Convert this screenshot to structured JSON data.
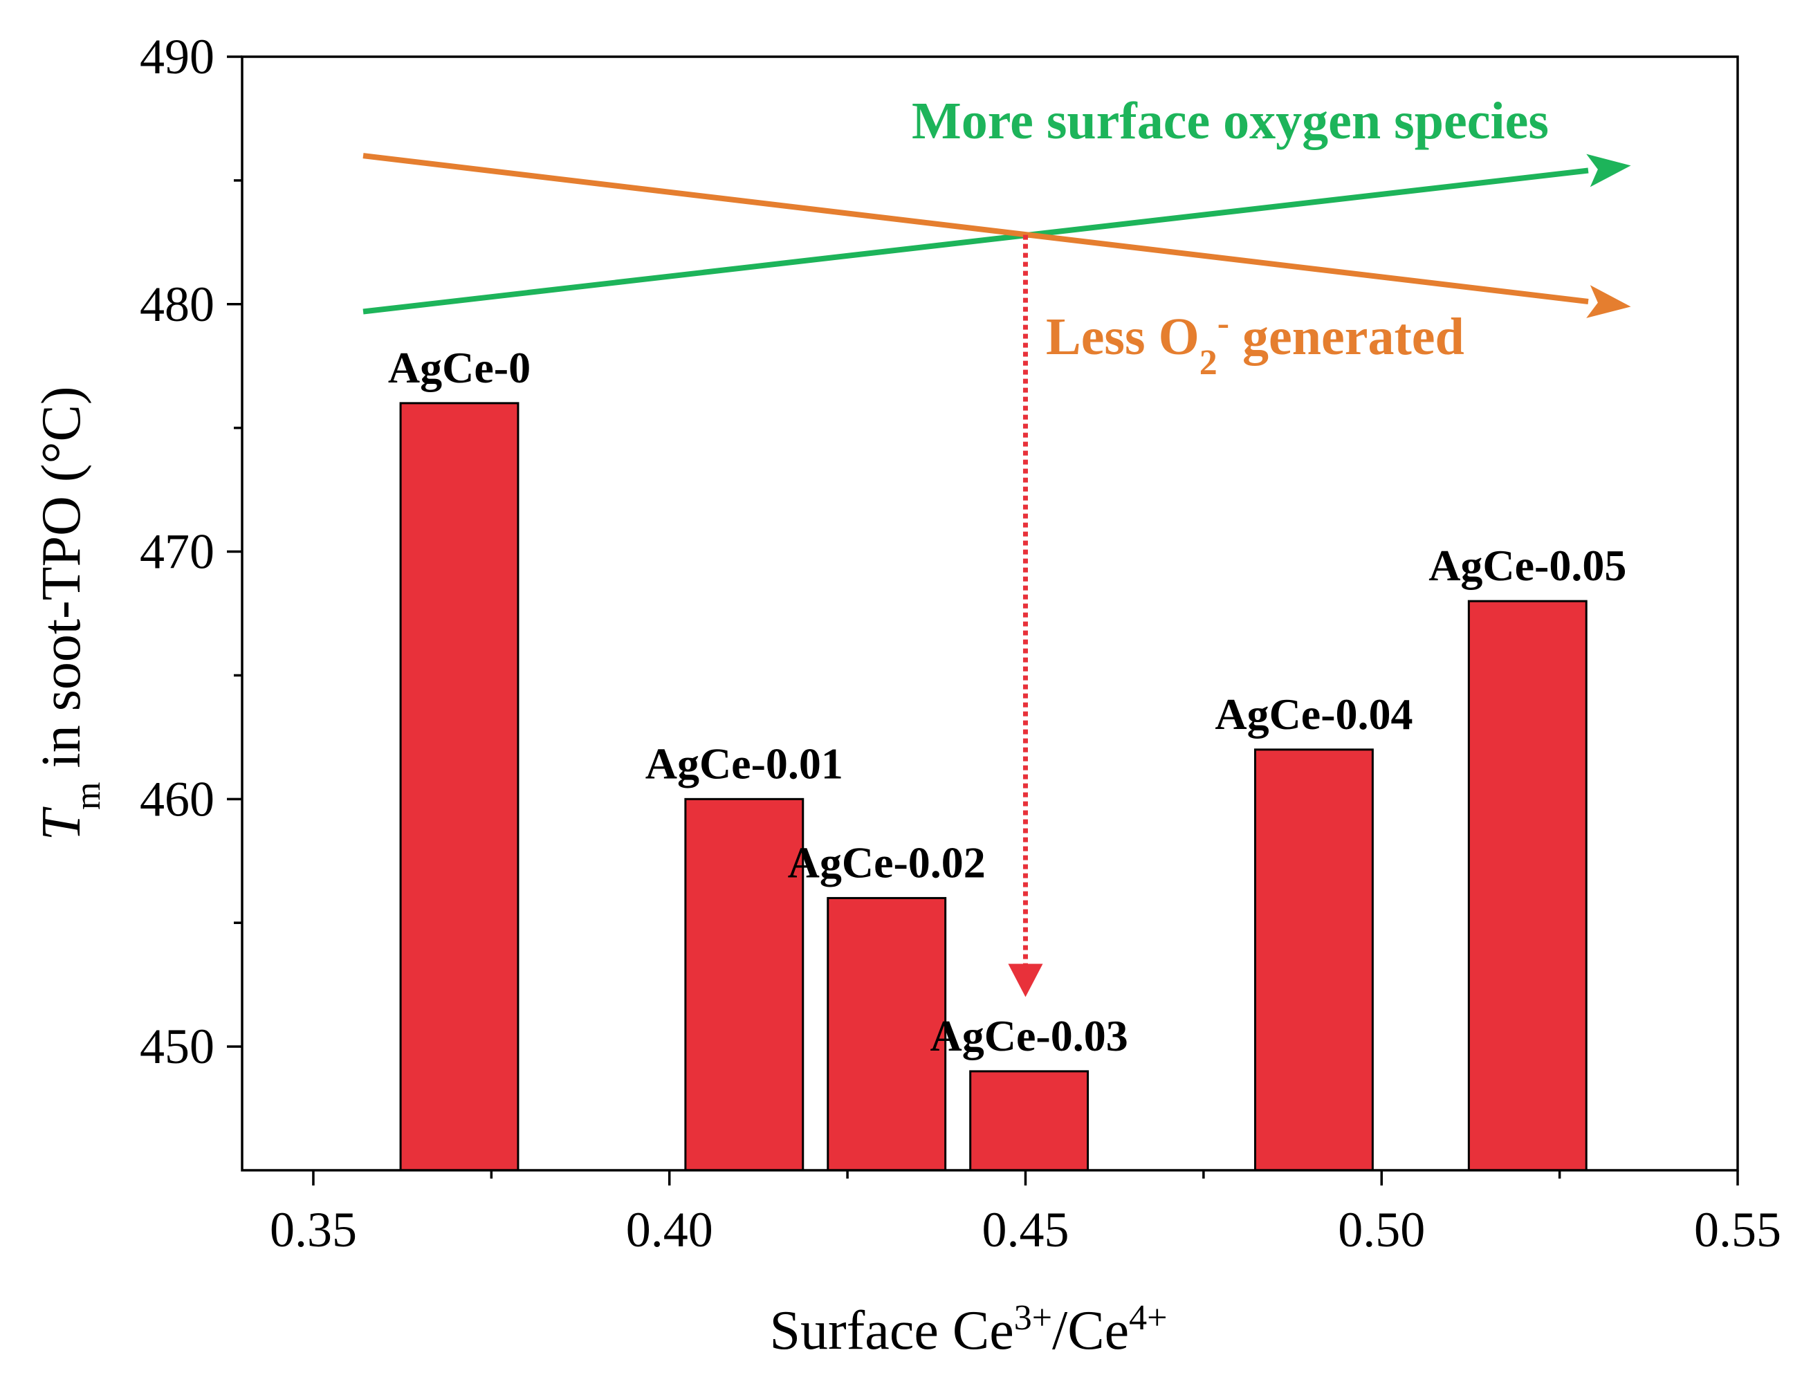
{
  "chart_data": {
    "type": "bar",
    "xlabel": {
      "prefix": "Surface Ce",
      "sup1": "3+",
      "mid": "/Ce",
      "sup2": "4+"
    },
    "ylabel": {
      "symbol": "T",
      "subscript": "m",
      "rest": " in soot-TPO (°C)"
    },
    "xlim": [
      0.34,
      0.55
    ],
    "ylim": [
      445,
      490
    ],
    "x_ticks": [
      0.35,
      0.4,
      0.45,
      0.5,
      0.55
    ],
    "x_tick_labels": [
      "0.35",
      "0.40",
      "0.45",
      "0.50",
      "0.55"
    ],
    "y_ticks": [
      450,
      460,
      470,
      480,
      490
    ],
    "y_tick_labels": [
      "450",
      "460",
      "470",
      "480",
      "490"
    ],
    "bar_width": 0.0165,
    "bar_color": "#e8313a",
    "bars": [
      {
        "label": "AgCe-0",
        "x": 0.3705,
        "value": 476
      },
      {
        "label": "AgCe-0.01",
        "x": 0.4105,
        "value": 460
      },
      {
        "label": "AgCe-0.02",
        "x": 0.4305,
        "value": 456
      },
      {
        "label": "AgCe-0.03",
        "x": 0.4505,
        "value": 449
      },
      {
        "label": "AgCe-0.04",
        "x": 0.4905,
        "value": 462
      },
      {
        "label": "AgCe-0.05",
        "x": 0.5205,
        "value": 468
      }
    ],
    "trend_lines": [
      {
        "name": "More surface oxygen species",
        "color": "#1db45a",
        "x": [
          0.357,
          0.535
        ],
        "y": [
          479.7,
          485.6
        ]
      },
      {
        "name": "Less O2- generated",
        "color": "#e57e2f",
        "x": [
          0.357,
          0.535
        ],
        "y": [
          486.0,
          479.9
        ]
      }
    ],
    "annotations": {
      "green_text": "More surface oxygen species",
      "orange_text": {
        "prefix": "Less O",
        "sub": "2",
        "sup": "-",
        "suffix": " generated"
      }
    },
    "drop_arrow": {
      "x": 0.45,
      "y_from": 482.8,
      "y_to": 452.0,
      "color": "#e8313a"
    }
  }
}
